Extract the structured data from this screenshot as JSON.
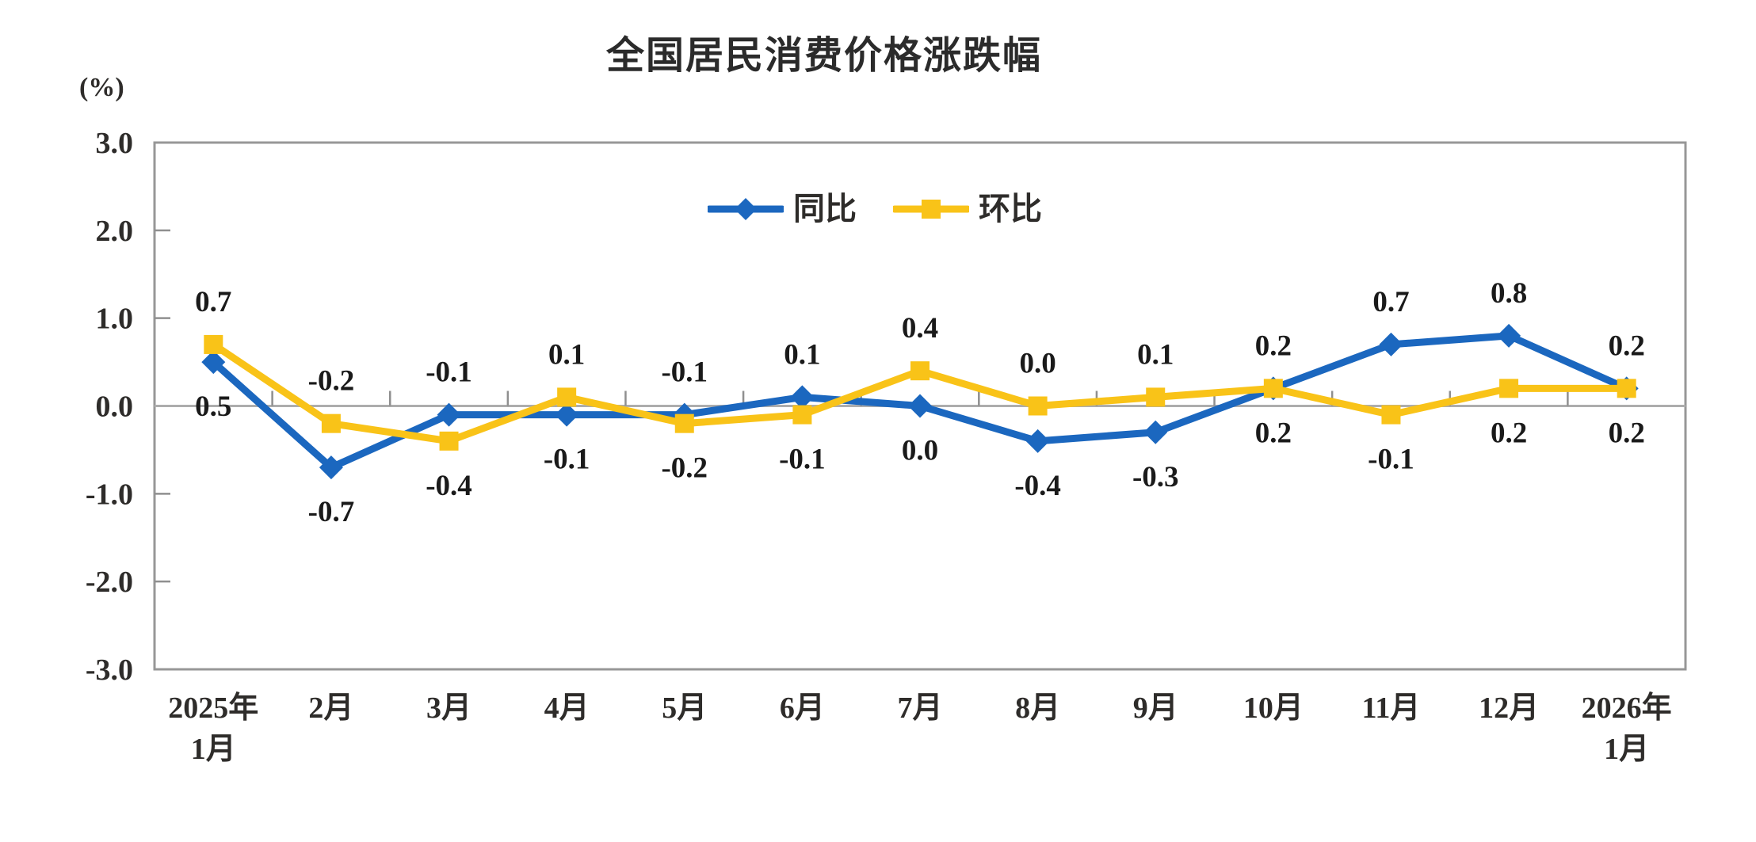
{
  "chart": {
    "title": "全国居民消费价格涨跌幅",
    "unit_label": "(%)",
    "colors": {
      "yoy_blue": "#1B67BF",
      "mom_yellow": "#F9C318",
      "axis_border": "#979797",
      "zero_gridline": "#ADADAD",
      "tick": "#8F8F8F",
      "axis_text": "#2E2C2A",
      "data_label_text": "#1A1A1A"
    }
  },
  "chart_data": {
    "type": "line",
    "title": "全国居民消费价格涨跌幅",
    "ylabel": "(%)",
    "ylim": [
      -3.0,
      3.0
    ],
    "y_tick_values": [
      3,
      2,
      1,
      0,
      -1,
      -2,
      -3
    ],
    "y_tick_labels": [
      "3.0",
      "2.0",
      "1.0",
      "0.0",
      "-1.0",
      "-2.0",
      "-3.0"
    ],
    "grid": "zero-baseline-only",
    "plot_border": true,
    "legend_position": "inside-top-center",
    "categories": [
      [
        "2025年",
        "1月"
      ],
      [
        "2月"
      ],
      [
        "3月"
      ],
      [
        "4月"
      ],
      [
        "5月"
      ],
      [
        "6月"
      ],
      [
        "7月"
      ],
      [
        "8月"
      ],
      [
        "9月"
      ],
      [
        "10月"
      ],
      [
        "11月"
      ],
      [
        "12月"
      ],
      [
        "2026年",
        "1月"
      ]
    ],
    "series": [
      {
        "name": "同比",
        "marker": "diamond",
        "color": "#1B67BF",
        "values": [
          0.5,
          -0.7,
          -0.1,
          -0.1,
          -0.1,
          0.1,
          0.0,
          -0.4,
          -0.3,
          0.2,
          0.7,
          0.8,
          0.2
        ],
        "point_labels": [
          "0.5",
          "-0.7",
          "-0.1",
          "-0.1",
          "-0.1",
          "0.1",
          "0.0",
          "-0.4",
          "-0.3",
          "0.2",
          "0.7",
          "0.8",
          "0.2"
        ],
        "label_side": [
          "below",
          "below",
          "above",
          "below",
          "above",
          "above",
          "below",
          "below",
          "below",
          "below",
          "above",
          "above",
          "above"
        ]
      },
      {
        "name": "环比",
        "marker": "square",
        "color": "#F9C318",
        "values": [
          0.7,
          -0.2,
          -0.4,
          0.1,
          -0.2,
          -0.1,
          0.4,
          0.0,
          0.1,
          0.2,
          -0.1,
          0.2,
          0.2
        ],
        "point_labels": [
          "0.7",
          "-0.2",
          "-0.4",
          "0.1",
          "-0.2",
          "-0.1",
          "0.4",
          "0.0",
          "0.1",
          "0.2",
          "-0.1",
          "0.2",
          "0.2"
        ],
        "label_side": [
          "above",
          "above",
          "below",
          "above",
          "below",
          "below",
          "above",
          "above",
          "above",
          "above",
          "below",
          "below",
          "below"
        ]
      }
    ]
  }
}
